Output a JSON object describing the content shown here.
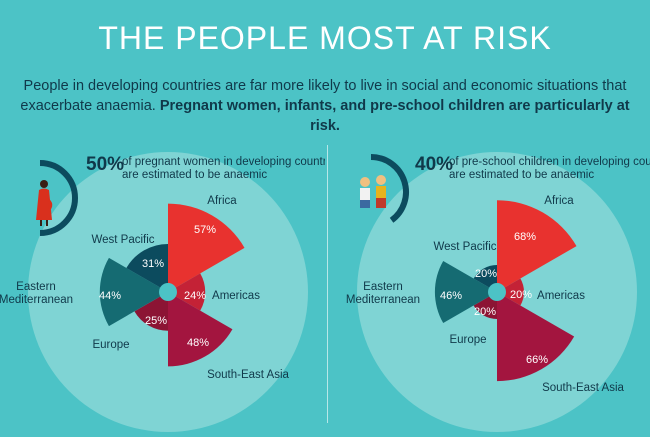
{
  "title": "THE PEOPLE MOST AT RISK",
  "intro": {
    "normal": "People in developing countries are far more likely to live in social and economic situations that exacerbate anaemia. ",
    "bold": "Pregnant women, infants, and pre-school children are particularly at risk."
  },
  "colors": {
    "background": "#4cc3c6",
    "circle": "#7fd4d4",
    "africa": "#e8322f",
    "sea": "#a3153f",
    "west_pacific": "#0c4b5e",
    "eastern_med": "#156b72",
    "americas": "#c42236",
    "europe": "#8c1434"
  },
  "chart_data": [
    {
      "type": "polar-area",
      "headline": {
        "percent": "50%",
        "line1": "of pregnant women in developing countries",
        "line2": "are estimated to be anaemic"
      },
      "gauge_value": 0.5,
      "icon": "pregnant-woman-icon",
      "unit": "%",
      "regions": [
        {
          "name": "Africa",
          "value": 57,
          "label": "57%"
        },
        {
          "name": "Americas",
          "value": 24,
          "label": "24%"
        },
        {
          "name": "South-East Asia",
          "value": 48,
          "label": "48%"
        },
        {
          "name": "Europe",
          "value": 25,
          "label": "25%"
        },
        {
          "name": "Eastern Mediterranean",
          "value": 44,
          "label": "44%"
        },
        {
          "name": "West Pacific",
          "value": 31,
          "label": "31%"
        }
      ]
    },
    {
      "type": "polar-area",
      "headline": {
        "percent": "40%",
        "line1": "of pre-school children in developing countries",
        "line2": "are estimated to be anaemic"
      },
      "gauge_value": 0.4,
      "icon": "children-icon",
      "unit": "%",
      "regions": [
        {
          "name": "Africa",
          "value": 68,
          "label": "68%"
        },
        {
          "name": "Americas",
          "value": 20,
          "label": "20%"
        },
        {
          "name": "South-East Asia",
          "value": 66,
          "label": "66%"
        },
        {
          "name": "Europe",
          "value": 20,
          "label": "20%"
        },
        {
          "name": "Eastern Mediterranean",
          "value": 46,
          "label": "46%"
        },
        {
          "name": "West Pacific",
          "value": 20,
          "label": "20%"
        }
      ]
    }
  ]
}
